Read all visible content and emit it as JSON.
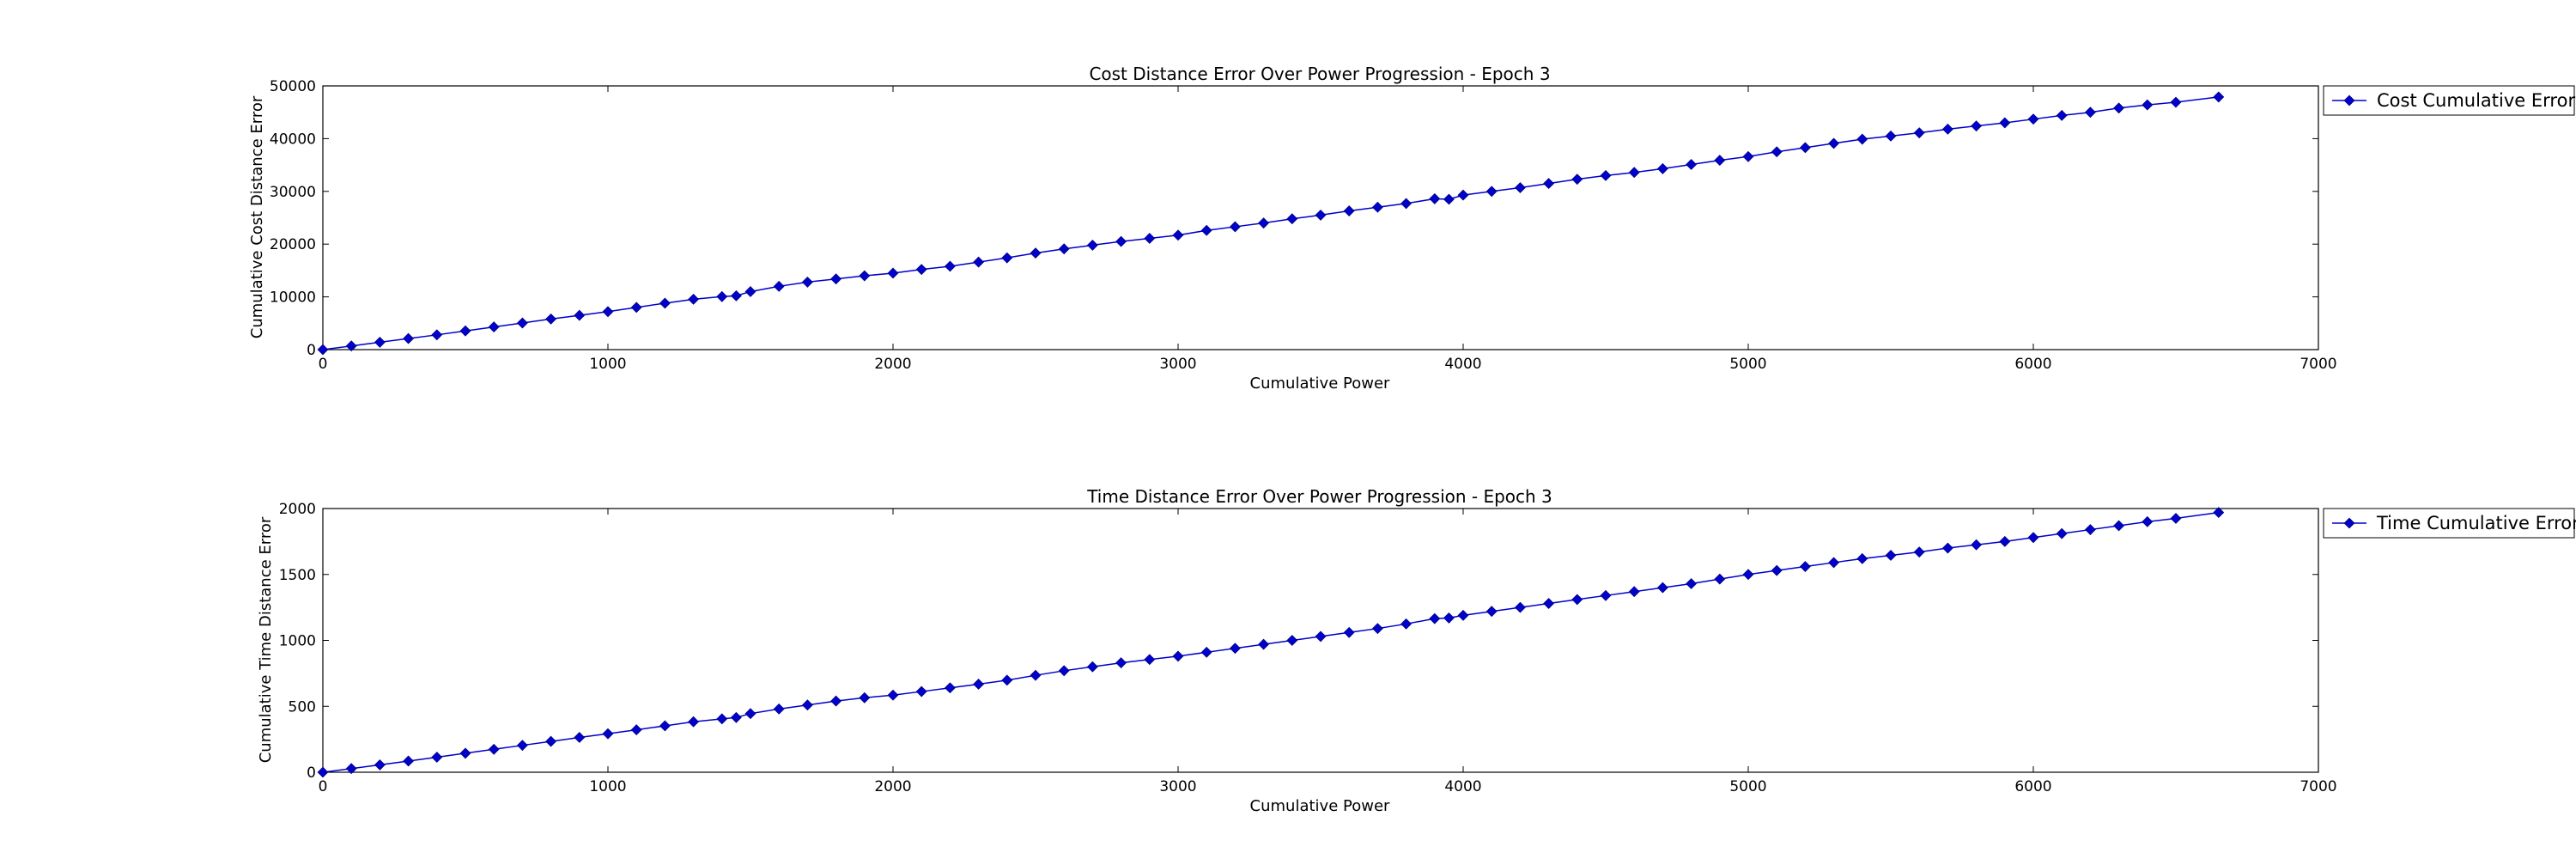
{
  "chart_data": [
    {
      "type": "line",
      "title": "Cost Distance Error Over Power Progression - Epoch 3",
      "xlabel": "Cumulative Power",
      "ylabel": "Cumulative Cost Distance Error",
      "xlim": [
        0,
        7000
      ],
      "ylim": [
        0,
        50000
      ],
      "xticks": [
        "0",
        "1000",
        "2000",
        "3000",
        "4000",
        "5000",
        "6000",
        "7000"
      ],
      "yticks": [
        "0",
        "10000",
        "20000",
        "30000",
        "40000",
        "50000"
      ],
      "legend_placement": "outside-right-top",
      "grid": false,
      "series": [
        {
          "name": "Cost Cumulative Error",
          "color": "#0000cc",
          "marker": "diamond",
          "x": [
            0,
            100,
            200,
            300,
            400,
            500,
            600,
            700,
            800,
            900,
            1000,
            1100,
            1200,
            1300,
            1400,
            1450,
            1500,
            1600,
            1700,
            1800,
            1900,
            2000,
            2100,
            2200,
            2300,
            2400,
            2500,
            2600,
            2700,
            2800,
            2900,
            3000,
            3100,
            3200,
            3300,
            3400,
            3500,
            3600,
            3700,
            3800,
            3900,
            3950,
            4000,
            4100,
            4200,
            4300,
            4400,
            4500,
            4600,
            4700,
            4800,
            4900,
            5000,
            5100,
            5200,
            5300,
            5400,
            5500,
            5600,
            5700,
            5800,
            5900,
            6000,
            6100,
            6200,
            6300,
            6400,
            6500,
            6650
          ],
          "y": [
            0,
            700,
            1400,
            2100,
            2800,
            3550,
            4300,
            5050,
            5800,
            6500,
            7200,
            8000,
            8800,
            9550,
            10050,
            10200,
            11000,
            12000,
            12800,
            13400,
            14000,
            14500,
            15200,
            15800,
            16600,
            17400,
            18300,
            19100,
            19800,
            20500,
            21100,
            21700,
            22600,
            23300,
            24000,
            24800,
            25500,
            26300,
            27000,
            27700,
            28600,
            28500,
            29300,
            30000,
            30700,
            31500,
            32300,
            33000,
            33600,
            34300,
            35100,
            35900,
            36600,
            37500,
            38300,
            39100,
            39900,
            40500,
            41100,
            41800,
            42400,
            43000,
            43700,
            44400,
            45000,
            45800,
            46400,
            46900,
            47900
          ]
        }
      ]
    },
    {
      "type": "line",
      "title": "Time Distance Error Over Power Progression - Epoch 3",
      "xlabel": "Cumulative Power",
      "ylabel": "Cumulative Time Distance Error",
      "xlim": [
        0,
        7000
      ],
      "ylim": [
        0,
        2000
      ],
      "xticks": [
        "0",
        "1000",
        "2000",
        "3000",
        "4000",
        "5000",
        "6000",
        "7000"
      ],
      "yticks": [
        "0",
        "500",
        "1000",
        "1500",
        "2000"
      ],
      "legend_placement": "outside-right-top",
      "grid": false,
      "series": [
        {
          "name": "Time Cumulative Error",
          "color": "#0000cc",
          "marker": "diamond",
          "x": [
            0,
            100,
            200,
            300,
            400,
            500,
            600,
            700,
            800,
            900,
            1000,
            1100,
            1200,
            1300,
            1400,
            1450,
            1500,
            1600,
            1700,
            1800,
            1900,
            2000,
            2100,
            2200,
            2300,
            2400,
            2500,
            2600,
            2700,
            2800,
            2900,
            3000,
            3100,
            3200,
            3300,
            3400,
            3500,
            3600,
            3700,
            3800,
            3900,
            3950,
            4000,
            4100,
            4200,
            4300,
            4400,
            4500,
            4600,
            4700,
            4800,
            4900,
            5000,
            5100,
            5200,
            5300,
            5400,
            5500,
            5600,
            5700,
            5800,
            5900,
            6000,
            6100,
            6200,
            6300,
            6400,
            6500,
            6650
          ],
          "y": [
            0,
            28,
            56,
            85,
            114,
            144,
            174,
            204,
            234,
            264,
            292,
            322,
            352,
            383,
            405,
            415,
            445,
            480,
            510,
            540,
            565,
            585,
            612,
            640,
            668,
            698,
            735,
            770,
            800,
            830,
            855,
            880,
            910,
            940,
            970,
            1000,
            1030,
            1060,
            1090,
            1125,
            1165,
            1170,
            1190,
            1220,
            1250,
            1280,
            1310,
            1340,
            1370,
            1400,
            1430,
            1465,
            1500,
            1530,
            1560,
            1590,
            1620,
            1645,
            1670,
            1700,
            1725,
            1750,
            1780,
            1810,
            1840,
            1870,
            1900,
            1925,
            1970
          ]
        }
      ]
    }
  ]
}
